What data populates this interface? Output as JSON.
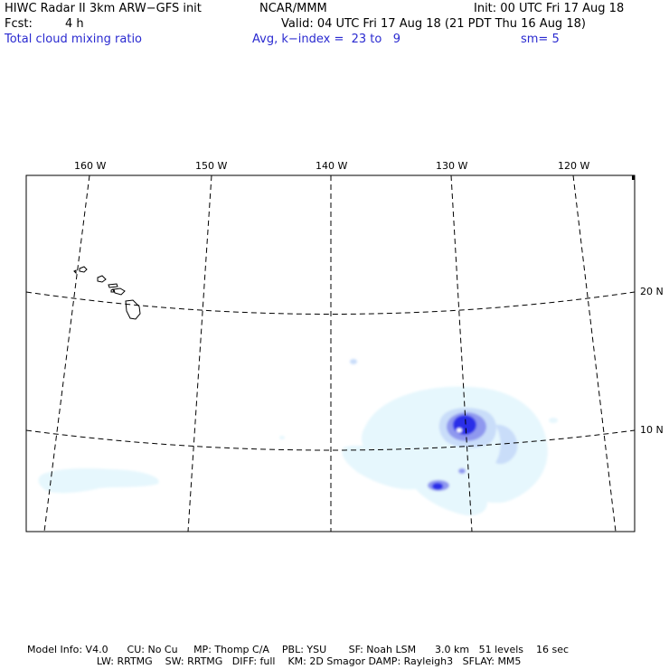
{
  "header": {
    "model_title": "HIWC Radar II 3km ARW−GFS init",
    "org": "NCAR/MMM",
    "init": "Init: 00 UTC Fri 17 Aug 18",
    "fcst_label": "Fcst:",
    "fcst_value": "4 h",
    "valid": "Valid: 04 UTC Fri 17 Aug 18 (21 PDT Thu 16 Aug 18)",
    "field": "Total cloud mixing ratio",
    "avg": "Avg, k−index =  23 to   9",
    "sm": "sm= 5"
  },
  "map": {
    "lon_labels": [
      "160 W",
      "150 W",
      "140 W",
      "130 W",
      "120 W"
    ],
    "lat_labels": [
      "20 N",
      "10 N"
    ],
    "colors": {
      "cloud_light": "#e6f7fd",
      "cloud_mid": "#c9ddf9",
      "cloud_dark": "#8f98ef",
      "cloud_core": "#2b2fe8",
      "gridline": "#000000"
    }
  },
  "footer": {
    "line1": "Model Info: V4.0      CU: No Cu     MP: Thomp C/A    PBL: YSU       SF: Noah LSM      3.0 km   51 levels    16 sec",
    "line2": "                      LW: RRTMG    SW: RRTMG   DIFF: full    KM: 2D Smagor DAMP: Rayleigh3   SFLAY: MM5"
  }
}
